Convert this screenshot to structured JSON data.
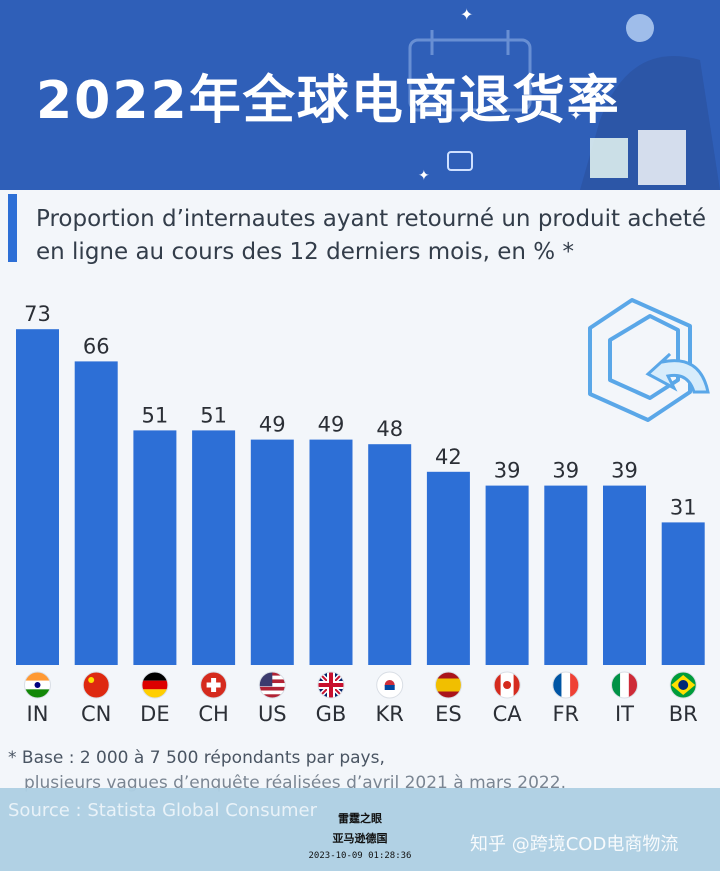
{
  "banner": {
    "title": "2022年全球电商退货率"
  },
  "subtitle": "Proportion d’internautes ayant retourné un produit acheté en ligne au cours des 12 derniers mois, en % *",
  "footnote": {
    "line1": "* Base : 2 000 à 7 500 répondants par pays,",
    "line2": "plusieurs vagues d’enquête réalisées d’avril 2021 à mars 2022."
  },
  "source": "Source : Statista Global Consumer",
  "watermark": {
    "title": "雷霆之眼",
    "subtitle": "亚马逊德国",
    "datetime": "2023-10-09 01:28:36",
    "zhihu": "知乎 @跨境COD电商物流"
  },
  "colors": {
    "banner": "#2f5fb8",
    "bar": "#2d6fd6",
    "card": "#f3f6fa"
  },
  "chart_data": {
    "type": "bar",
    "categories": [
      "IN",
      "CN",
      "DE",
      "CH",
      "US",
      "GB",
      "KR",
      "ES",
      "CA",
      "FR",
      "IT",
      "BR"
    ],
    "values": [
      73,
      66,
      51,
      51,
      49,
      49,
      48,
      42,
      39,
      39,
      39,
      31
    ],
    "flag_icons": [
      "india-flag-icon",
      "china-flag-icon",
      "germany-flag-icon",
      "switzerland-flag-icon",
      "usa-flag-icon",
      "uk-flag-icon",
      "korea-flag-icon",
      "spain-flag-icon",
      "canada-flag-icon",
      "france-flag-icon",
      "italy-flag-icon",
      "brazil-flag-icon"
    ],
    "title": "",
    "xlabel": "",
    "ylabel": "",
    "ylim": [
      0,
      100
    ],
    "grid": false,
    "data_labels": true
  }
}
